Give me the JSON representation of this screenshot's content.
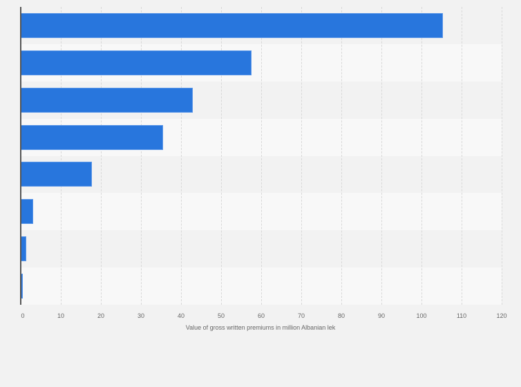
{
  "chart_data": {
    "type": "bar",
    "orientation": "horizontal",
    "title": "",
    "xlabel": "Value of gross written premiums in million Albanian lek",
    "ylabel": "",
    "categories": [
      "",
      "",
      "",
      "",
      "",
      "",
      "",
      ""
    ],
    "values": [
      105.3,
      57.6,
      42.9,
      35.6,
      17.8,
      3.1,
      1.3,
      0.5
    ],
    "xlim": [
      0,
      120
    ],
    "xticks": [
      0,
      10,
      20,
      30,
      40,
      50,
      60,
      70,
      80,
      90,
      100,
      110,
      120
    ],
    "grid": true,
    "legend": null,
    "bar_color": "#2876dd"
  }
}
